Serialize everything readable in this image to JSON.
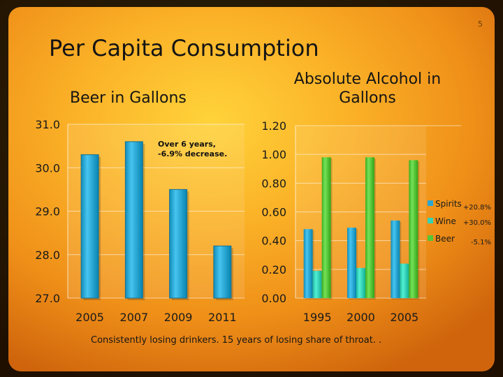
{
  "page_number": "5",
  "title": "Per Capita Consumption",
  "footer": "Consistently losing drinkers. 15 years of losing share of throat. .",
  "colors": {
    "beer_bar": "#2aa6d2",
    "spirits": "#2aa6d2",
    "wine": "#35d2b8",
    "beer": "#57c53a"
  },
  "chart_data": [
    {
      "type": "bar",
      "title": "Beer in Gallons",
      "categories": [
        "2005",
        "2007",
        "2009",
        "2011"
      ],
      "values": [
        30.3,
        30.6,
        29.5,
        28.2
      ],
      "ylim": [
        27.0,
        31.0
      ],
      "yticks": [
        "27.0",
        "28.0",
        "29.0",
        "30.0",
        "31.0"
      ],
      "annotation": "Over 6 years, -6.9% decrease.",
      "grid": true
    },
    {
      "type": "bar",
      "title": "Absolute Alcohol in Gallons",
      "categories": [
        "1995",
        "2000",
        "2005"
      ],
      "series": [
        {
          "name": "Spirits",
          "values": [
            0.48,
            0.49,
            0.54
          ],
          "change": "+20.8%"
        },
        {
          "name": "Wine",
          "values": [
            0.19,
            0.21,
            0.24
          ],
          "change": "+30.0%"
        },
        {
          "name": "Beer",
          "values": [
            0.98,
            0.98,
            0.96
          ],
          "change": "-5.1%"
        }
      ],
      "ylim": [
        0.0,
        1.2
      ],
      "yticks": [
        "0.00",
        "0.20",
        "0.40",
        "0.60",
        "0.80",
        "1.00",
        "1.20"
      ],
      "legend_position": "right",
      "grid": true
    }
  ]
}
